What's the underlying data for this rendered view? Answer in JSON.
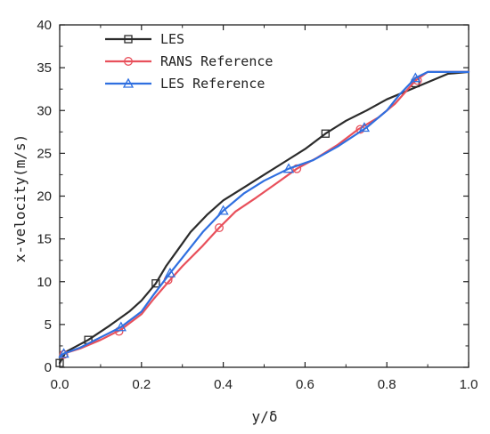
{
  "chart_data": {
    "type": "line",
    "xlabel": "y/δ",
    "ylabel": "x-velocity(m/s)",
    "xlim": [
      0.0,
      1.0
    ],
    "ylim": [
      0,
      40
    ],
    "x_ticks": [
      "0.0",
      "0.2",
      "0.4",
      "0.6",
      "0.8",
      "1.0"
    ],
    "y_ticks": [
      "0",
      "5",
      "10",
      "15",
      "20",
      "25",
      "30",
      "35",
      "40"
    ],
    "grid": false,
    "legend_position": "top-left",
    "series": [
      {
        "name": "LES",
        "color": "#2b2b2b",
        "marker": "square",
        "x": [
          0.0,
          0.015,
          0.07,
          0.12,
          0.17,
          0.2,
          0.235,
          0.26,
          0.29,
          0.32,
          0.36,
          0.4,
          0.45,
          0.5,
          0.55,
          0.6,
          0.65,
          0.7,
          0.75,
          0.8,
          0.85,
          0.9,
          0.95,
          1.0
        ],
        "y": [
          0.5,
          1.8,
          3.2,
          4.8,
          6.5,
          7.8,
          9.8,
          11.8,
          13.8,
          15.8,
          17.8,
          19.5,
          21.0,
          22.5,
          24.0,
          25.5,
          27.3,
          28.8,
          30.0,
          31.3,
          32.3,
          33.3,
          34.3,
          34.5
        ],
        "markers_x": [
          0.0,
          0.07,
          0.235,
          0.65,
          0.87
        ],
        "markers_y": [
          0.5,
          3.2,
          9.8,
          27.3,
          33.2
        ]
      },
      {
        "name": "RANS Reference",
        "color": "#e8505b",
        "marker": "circle",
        "x": [
          0.0,
          0.01,
          0.05,
          0.1,
          0.15,
          0.2,
          0.23,
          0.27,
          0.3,
          0.35,
          0.39,
          0.43,
          0.48,
          0.53,
          0.58,
          0.63,
          0.68,
          0.73,
          0.78,
          0.82,
          0.87,
          0.9,
          0.95,
          1.0
        ],
        "y": [
          1.2,
          1.6,
          2.2,
          3.2,
          4.4,
          6.2,
          8.0,
          10.2,
          11.8,
          14.2,
          16.3,
          18.2,
          19.8,
          21.5,
          23.2,
          24.5,
          26.0,
          27.8,
          29.2,
          30.8,
          33.5,
          34.5,
          34.5,
          34.5
        ],
        "markers_x": [
          0.01,
          0.145,
          0.265,
          0.39,
          0.58,
          0.735,
          0.875
        ],
        "markers_y": [
          1.5,
          4.2,
          10.2,
          16.3,
          23.2,
          27.8,
          33.5
        ]
      },
      {
        "name": "LES Reference",
        "color": "#2f6fe0",
        "marker": "triangle",
        "x": [
          0.0,
          0.01,
          0.05,
          0.1,
          0.15,
          0.2,
          0.23,
          0.27,
          0.3,
          0.35,
          0.4,
          0.45,
          0.5,
          0.56,
          0.62,
          0.68,
          0.75,
          0.8,
          0.83,
          0.87,
          0.9,
          0.95,
          1.0
        ],
        "y": [
          1.2,
          1.6,
          2.3,
          3.5,
          4.7,
          6.5,
          8.5,
          11.0,
          12.8,
          15.8,
          18.3,
          20.3,
          21.8,
          23.2,
          24.2,
          25.8,
          28.0,
          30.0,
          31.8,
          33.8,
          34.5,
          34.5,
          34.5
        ],
        "markers_x": [
          0.01,
          0.15,
          0.27,
          0.4,
          0.56,
          0.745,
          0.87
        ],
        "markers_y": [
          1.6,
          4.7,
          11.0,
          18.3,
          23.2,
          28.0,
          33.8
        ]
      }
    ]
  }
}
